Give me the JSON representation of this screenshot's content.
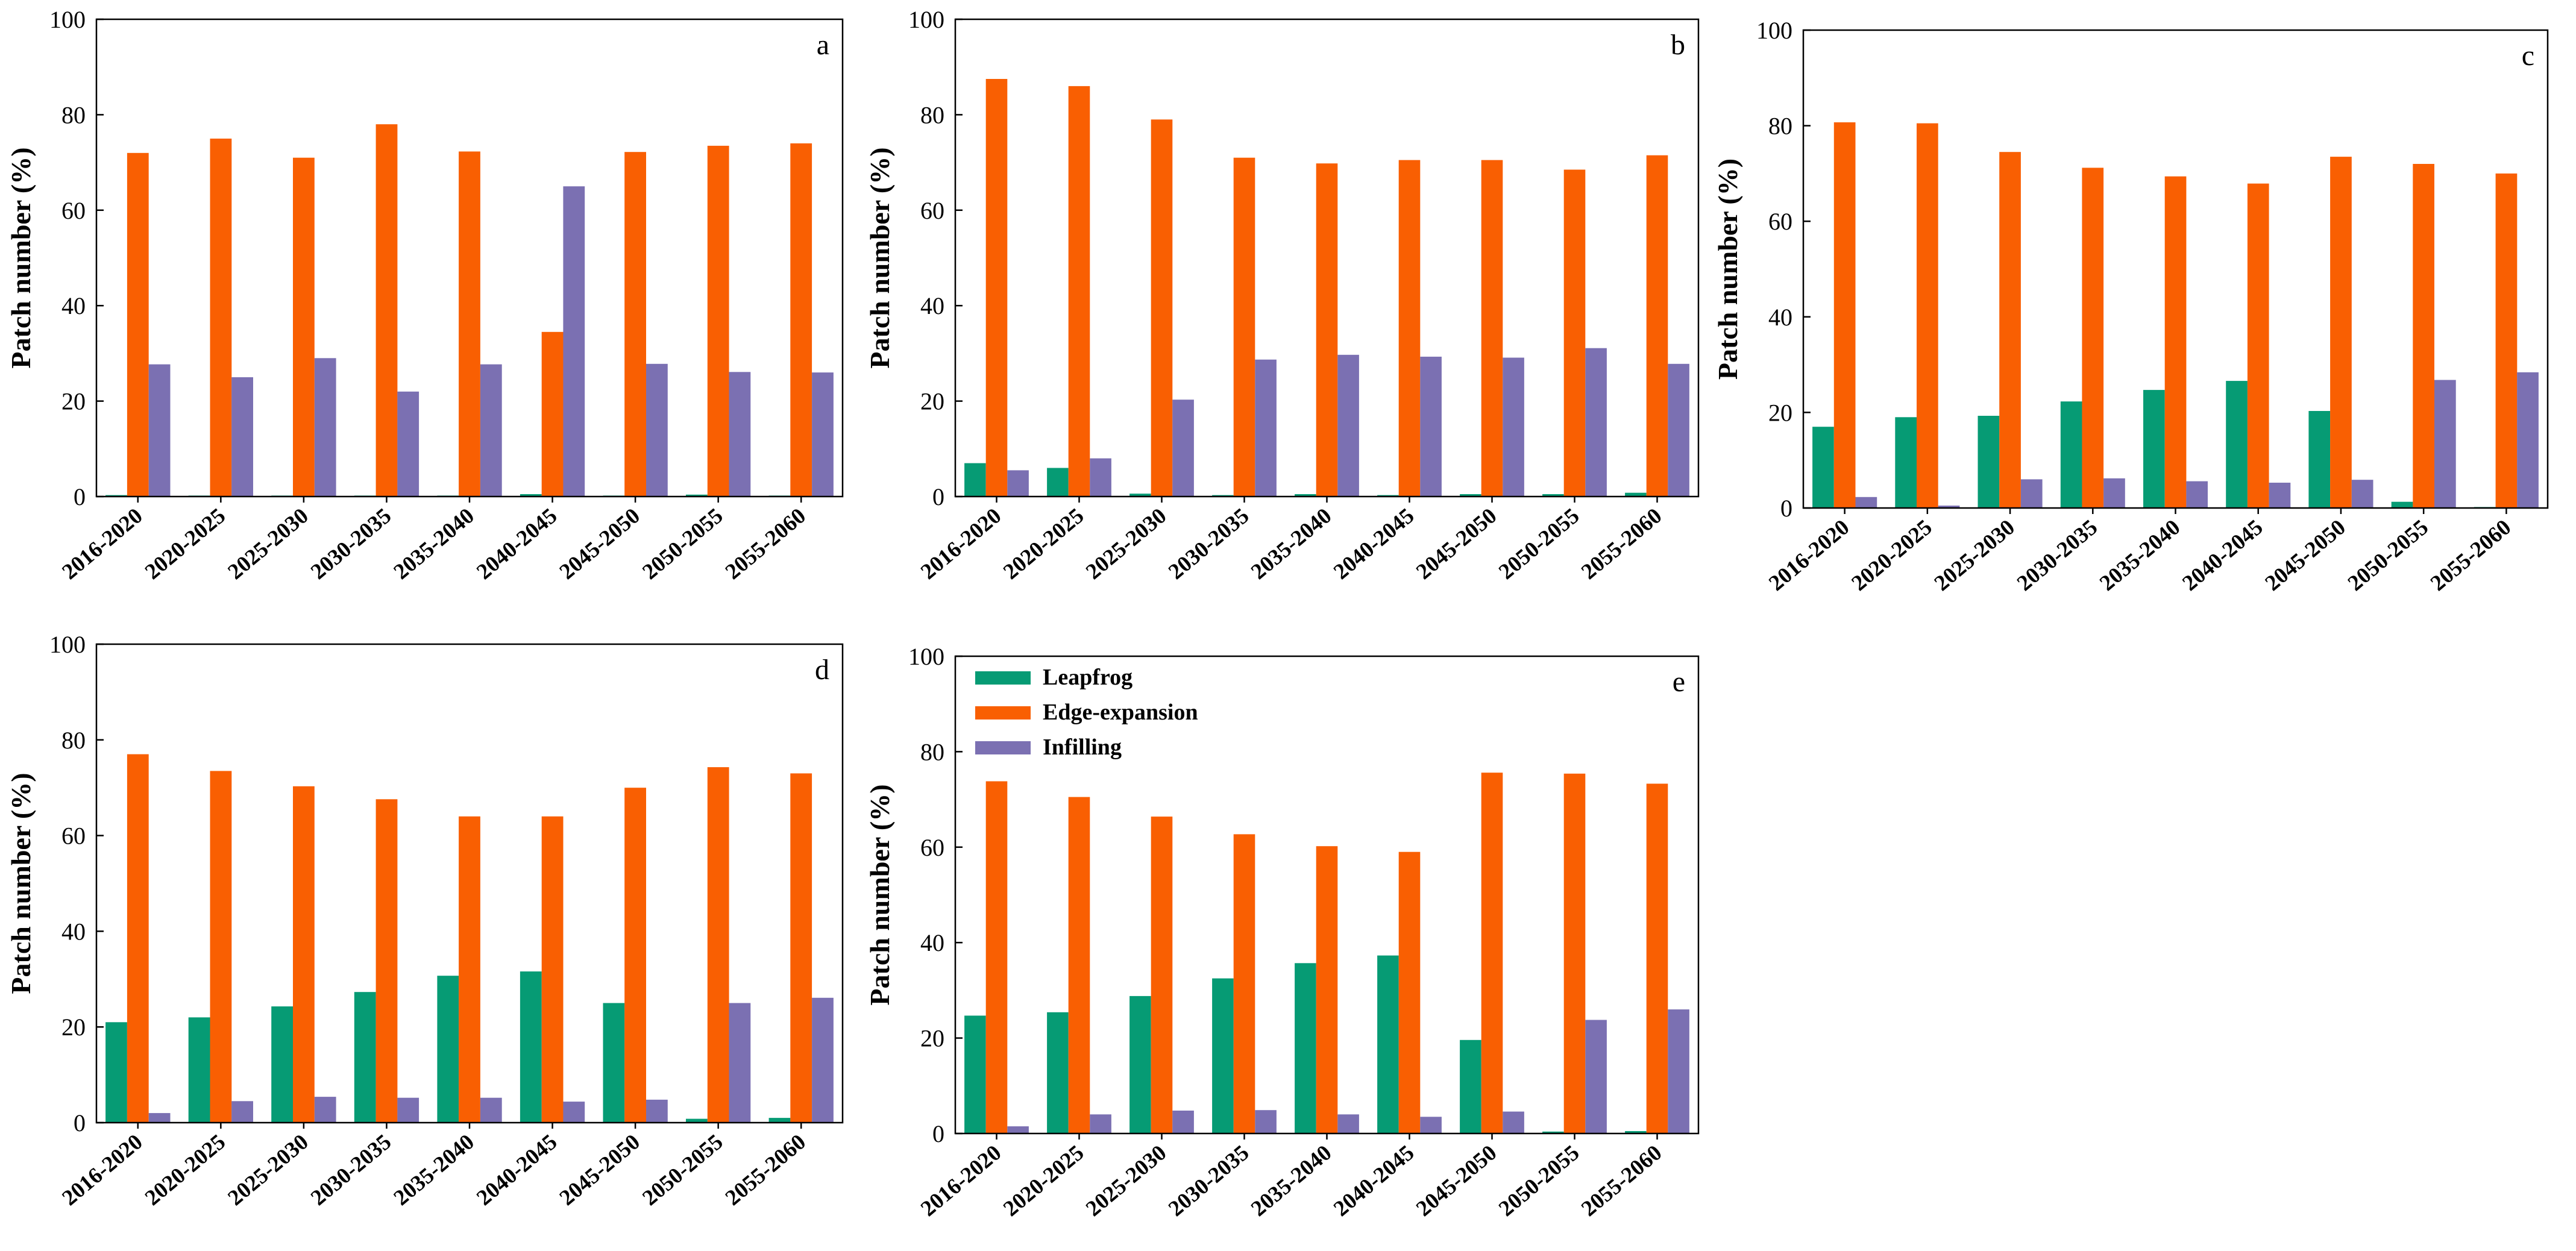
{
  "colors": {
    "Leapfrog": "#069B74",
    "Edge-expansion": "#F95F02",
    "Infilling": "#7B70B2",
    "axis": "#000000"
  },
  "legend": {
    "items": [
      {
        "label": "Leapfrog",
        "color": "#069B74"
      },
      {
        "label": "Edge-expansion",
        "color": "#F95F02"
      },
      {
        "label": "Infilling",
        "color": "#7B70B2"
      }
    ]
  },
  "chart_data": [
    {
      "type": "bar",
      "panel": "a",
      "categories": [
        "2016-2020",
        "2020-2025",
        "2025-2030",
        "2030-2035",
        "2035-2040",
        "2040-2045",
        "2045-2050",
        "2050-2055",
        "2055-2060"
      ],
      "ylabel": "Patch number (%)",
      "ylim": [
        0,
        100
      ],
      "yticks": [
        0,
        20,
        40,
        60,
        80,
        100
      ],
      "series": [
        {
          "name": "Leapfrog",
          "values": [
            0.3,
            0.2,
            0.2,
            0.2,
            0.2,
            0.5,
            0.2,
            0.4,
            0.2
          ]
        },
        {
          "name": "Edge-expansion",
          "values": [
            72,
            75,
            71,
            78,
            72.3,
            34.5,
            72.2,
            73.5,
            74
          ]
        },
        {
          "name": "Infilling",
          "values": [
            27.7,
            25,
            29,
            22,
            27.7,
            65,
            27.8,
            26.1,
            26
          ]
        }
      ]
    },
    {
      "type": "bar",
      "panel": "b",
      "categories": [
        "2016-2020",
        "2020-2025",
        "2025-2030",
        "2030-2035",
        "2035-2040",
        "2040-2045",
        "2045-2050",
        "2050-2055",
        "2055-2060"
      ],
      "ylabel": "Patch number (%)",
      "ylim": [
        0,
        100
      ],
      "yticks": [
        0,
        20,
        40,
        60,
        80,
        100
      ],
      "series": [
        {
          "name": "Leapfrog",
          "values": [
            7,
            6,
            0.6,
            0.3,
            0.5,
            0.3,
            0.5,
            0.5,
            0.8
          ]
        },
        {
          "name": "Edge-expansion",
          "values": [
            87.5,
            86,
            79,
            71,
            69.8,
            70.5,
            70.5,
            68.5,
            71.5
          ]
        },
        {
          "name": "Infilling",
          "values": [
            5.5,
            8,
            20.3,
            28.7,
            29.7,
            29.3,
            29.1,
            31.1,
            27.8
          ]
        }
      ]
    },
    {
      "type": "bar",
      "panel": "c",
      "categories": [
        "2016-2020",
        "2020-2025",
        "2025-2030",
        "2030-2035",
        "2035-2040",
        "2040-2045",
        "2045-2050",
        "2050-2055",
        "2055-2060"
      ],
      "ylabel": "Patch number (%)",
      "ylim": [
        0,
        100
      ],
      "yticks": [
        0,
        20,
        40,
        60,
        80,
        100
      ],
      "series": [
        {
          "name": "Leapfrog",
          "values": [
            17,
            19,
            19.3,
            22.3,
            24.7,
            26.6,
            20.3,
            1.3,
            0.2
          ]
        },
        {
          "name": "Edge-expansion",
          "values": [
            80.7,
            80.5,
            74.5,
            71.2,
            69.4,
            67.9,
            73.5,
            72,
            70
          ]
        },
        {
          "name": "Infilling",
          "values": [
            2.3,
            0.5,
            6,
            6.2,
            5.6,
            5.3,
            5.9,
            26.8,
            28.4
          ]
        }
      ]
    },
    {
      "type": "bar",
      "panel": "d",
      "categories": [
        "2016-2020",
        "2020-2025",
        "2025-2030",
        "2030-2035",
        "2035-2040",
        "2040-2045",
        "2045-2050",
        "2050-2055",
        "2055-2060"
      ],
      "ylabel": "Patch number (%)",
      "ylim": [
        0,
        100
      ],
      "yticks": [
        0,
        20,
        40,
        60,
        80,
        100
      ],
      "series": [
        {
          "name": "Leapfrog",
          "values": [
            21,
            22,
            24.3,
            27.3,
            30.7,
            31.6,
            25,
            0.8,
            1
          ]
        },
        {
          "name": "Edge-expansion",
          "values": [
            77,
            73.5,
            70.3,
            67.6,
            64,
            64,
            70,
            74.3,
            73
          ]
        },
        {
          "name": "Infilling",
          "values": [
            2,
            4.5,
            5.4,
            5.2,
            5.2,
            4.4,
            4.8,
            25,
            26.1
          ]
        }
      ]
    },
    {
      "type": "bar",
      "panel": "e",
      "categories": [
        "2016-2020",
        "2020-2025",
        "2025-2030",
        "2030-2035",
        "2035-2040",
        "2040-2045",
        "2045-2050",
        "2050-2055",
        "2055-2060"
      ],
      "ylabel": "Patch number (%)",
      "ylim": [
        0,
        100
      ],
      "yticks": [
        0,
        20,
        40,
        60,
        80,
        100
      ],
      "series": [
        {
          "name": "Leapfrog",
          "values": [
            24.7,
            25.4,
            28.8,
            32.5,
            35.7,
            37.3,
            19.6,
            0.4,
            0.5
          ]
        },
        {
          "name": "Edge-expansion",
          "values": [
            73.8,
            70.5,
            66.4,
            62.7,
            60.2,
            59,
            75.6,
            75.4,
            73.3
          ]
        },
        {
          "name": "Infilling",
          "values": [
            1.5,
            4,
            4.8,
            4.9,
            4,
            3.5,
            4.6,
            23.8,
            26
          ]
        }
      ]
    }
  ]
}
